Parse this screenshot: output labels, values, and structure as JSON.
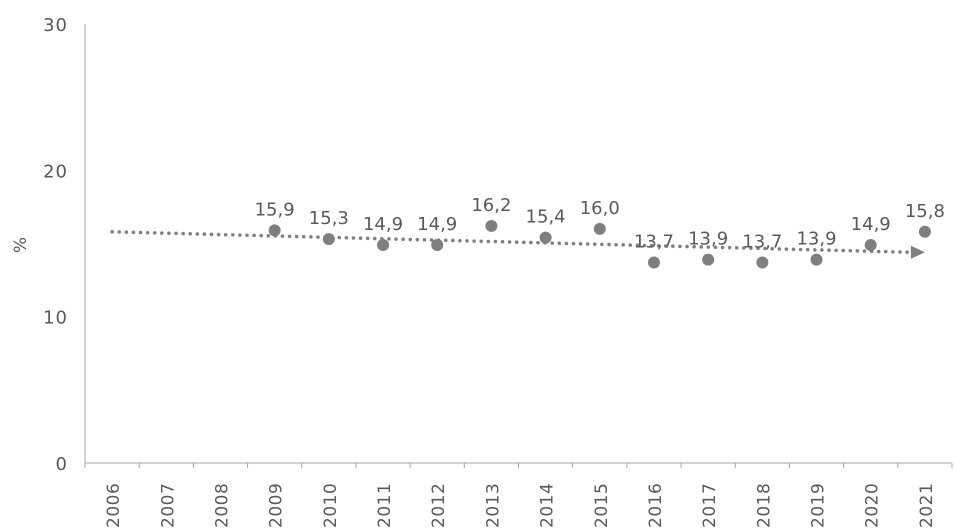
{
  "chart_data": {
    "type": "scatter",
    "title": "",
    "xlabel": "",
    "ylabel": "%",
    "ylim": [
      0,
      30
    ],
    "yticks": [
      "0",
      "10",
      "20",
      "30"
    ],
    "categories": [
      "2006",
      "2007",
      "2008",
      "2009",
      "2010",
      "2011",
      "2012",
      "2013",
      "2014",
      "2015",
      "2016",
      "2017",
      "2018",
      "2019",
      "2020",
      "2021"
    ],
    "series": [
      {
        "x": [
          "2009",
          "2010",
          "2011",
          "2012",
          "2013",
          "2014",
          "2015",
          "2016",
          "2017",
          "2018",
          "2019",
          "2020",
          "2021"
        ],
        "values": [
          15.9,
          15.3,
          14.9,
          14.9,
          16.2,
          15.4,
          16.0,
          13.7,
          13.9,
          13.7,
          13.9,
          14.9,
          15.8
        ],
        "labels": [
          "15,9",
          "15,3",
          "14,9",
          "14,9",
          "16,2",
          "15,4",
          "16,0",
          "13,7",
          "13,9",
          "13,7",
          "13,9",
          "14,9",
          "15,8"
        ]
      }
    ],
    "trendline": {
      "style": "dotted",
      "arrow": true,
      "start": {
        "x": "2006",
        "y": 15.8
      },
      "end": {
        "x": "2021",
        "y": 14.4
      }
    },
    "grid": false,
    "legend": "none",
    "colors": {
      "marker": "#7f7f7f",
      "trend": "#7f7f7f",
      "axis": "#a6a6a6",
      "text": "#595959"
    }
  }
}
